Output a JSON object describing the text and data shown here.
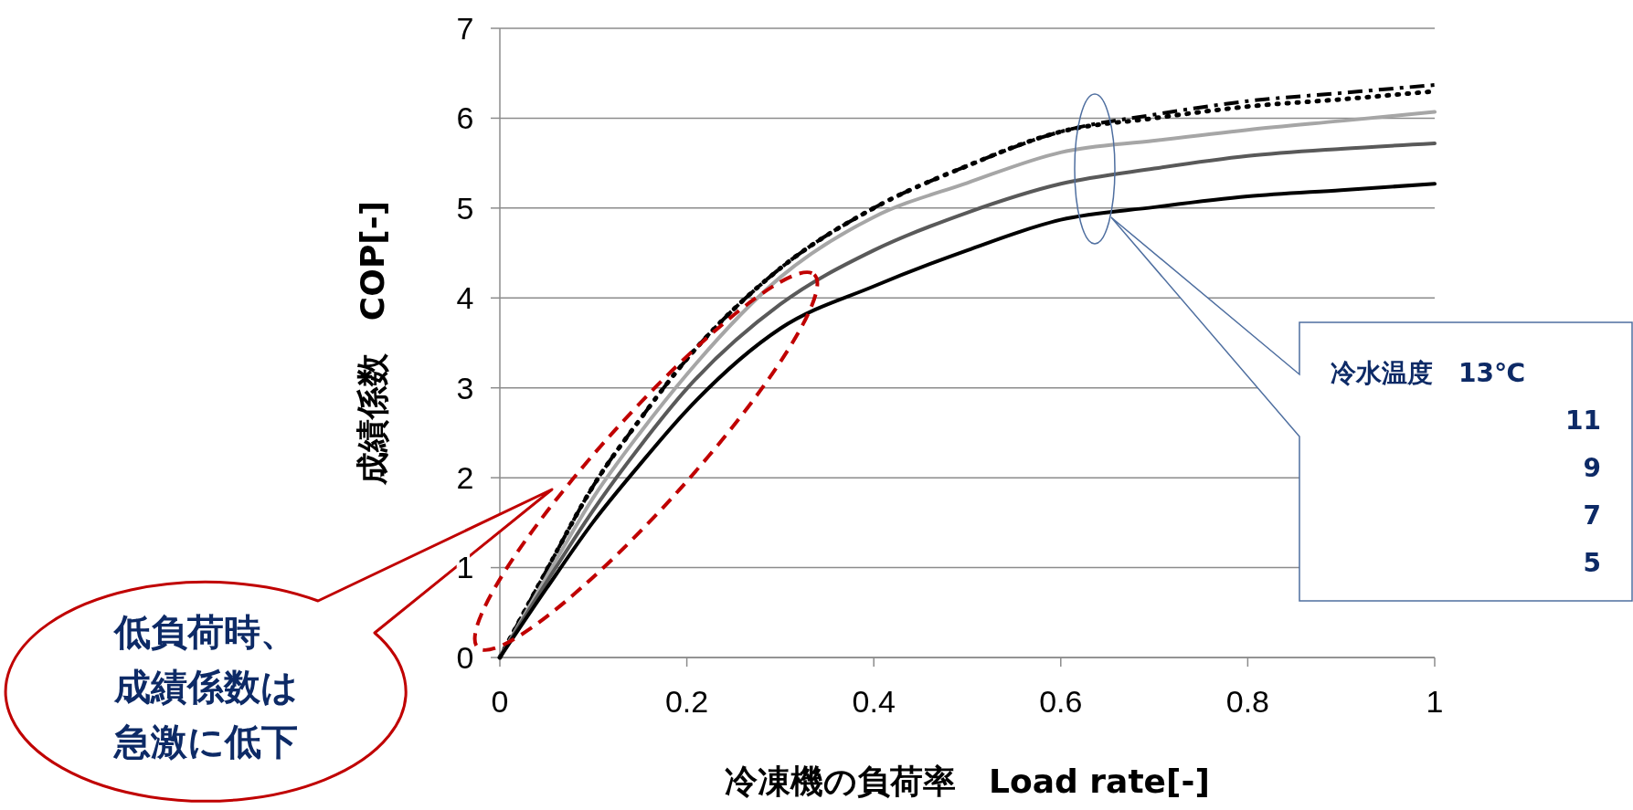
{
  "chart_data": {
    "type": "line",
    "xlabel": "冷凍機の負荷率　Load rate[-]",
    "ylabel": "成績係数　COP[-]",
    "x": [
      0,
      0.05,
      0.1,
      0.15,
      0.2,
      0.3,
      0.4,
      0.5,
      0.6,
      0.7,
      0.8,
      0.9,
      1
    ],
    "xlim": [
      0,
      1
    ],
    "xticks": [
      0,
      0.2,
      0.4,
      0.6,
      0.8,
      1
    ],
    "ylim": [
      0,
      7
    ],
    "yticks": [
      0,
      1,
      2,
      3,
      4,
      5,
      6,
      7
    ],
    "grid": "y",
    "marker": "none",
    "series": [
      {
        "color": "#000000",
        "line_style": "dotted",
        "values": [
          0,
          0.97,
          1.91,
          2.65,
          3.32,
          4.33,
          5.0,
          5.47,
          5.85,
          6.0,
          6.13,
          6.21,
          6.3
        ]
      },
      {
        "color": "#000000",
        "line_style": "dashed",
        "values": [
          0,
          0.97,
          1.91,
          2.65,
          3.32,
          4.33,
          5.0,
          5.47,
          5.85,
          6.04,
          6.19,
          6.28,
          6.37
        ]
      },
      {
        "color": "#a6a6a6",
        "line_style": "solid",
        "values": [
          0,
          0.9,
          1.78,
          2.5,
          3.15,
          4.23,
          4.9,
          5.28,
          5.62,
          5.75,
          5.87,
          5.97,
          6.07
        ]
      },
      {
        "color": "#595959",
        "line_style": "solid",
        "values": [
          0,
          0.84,
          1.64,
          2.35,
          2.99,
          3.93,
          4.53,
          4.95,
          5.27,
          5.44,
          5.58,
          5.66,
          5.72
        ]
      },
      {
        "color": "#000000",
        "line_style": "solid",
        "values": [
          0,
          0.77,
          1.51,
          2.15,
          2.75,
          3.66,
          4.13,
          4.53,
          4.87,
          5.01,
          5.13,
          5.2,
          5.27
        ]
      }
    ],
    "annotations": [
      "冷水温度　13℃",
      "11",
      "9",
      "7",
      "5",
      "低負荷時、",
      "成績係数は",
      "急激に低下"
    ]
  }
}
